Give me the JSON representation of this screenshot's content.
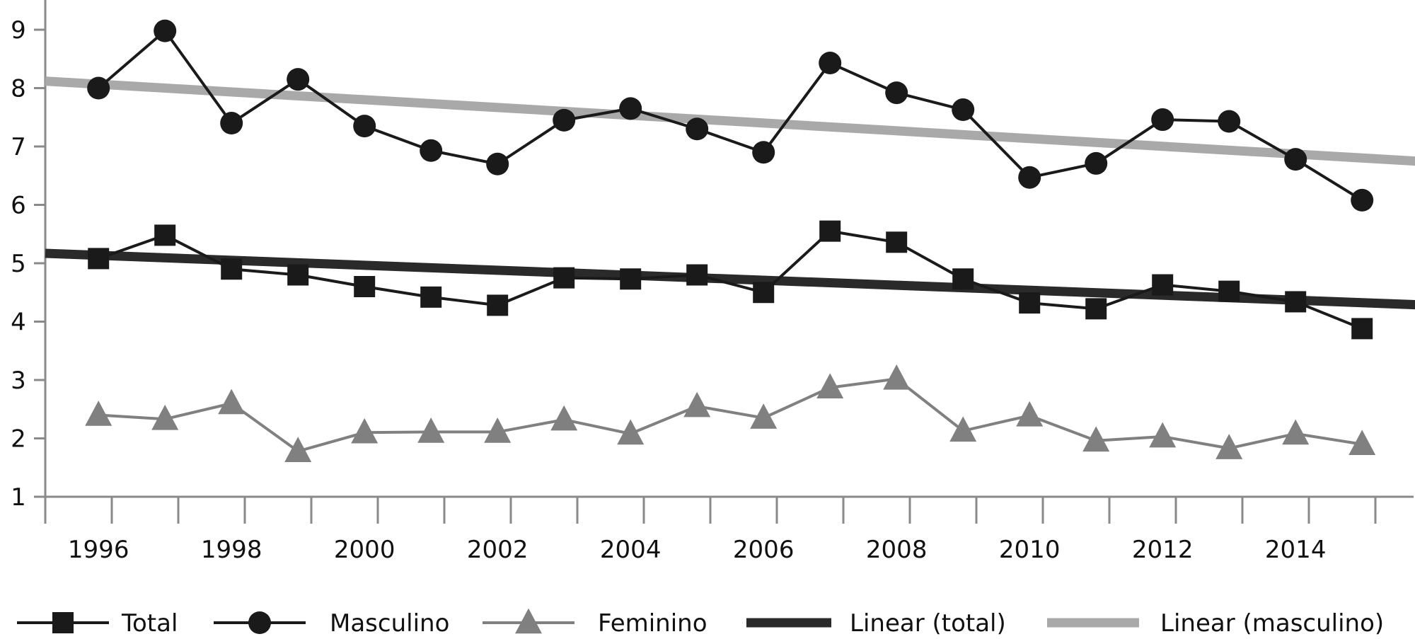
{
  "chart_data": {
    "type": "line",
    "title": "",
    "xlabel": "",
    "ylabel": "",
    "ylim": [
      1,
      9
    ],
    "xlim": [
      1995.2,
      2015.8
    ],
    "yticks": [
      "1",
      "2",
      "3",
      "4",
      "5",
      "6",
      "7",
      "8",
      "9"
    ],
    "xticklabels": [
      "1996",
      "1998",
      "2000",
      "2002",
      "2004",
      "2006",
      "2008",
      "2010",
      "2012",
      "2014"
    ],
    "x": [
      1996,
      1997,
      1998,
      1999,
      2000,
      2001,
      2002,
      2003,
      2004,
      2005,
      2006,
      2007,
      2008,
      2009,
      2010,
      2011,
      2012,
      2013,
      2014,
      2015
    ],
    "grid": false,
    "legend_position": "bottom",
    "series": [
      {
        "name": "Total",
        "marker": "square",
        "color": "#1a1a1a",
        "values": [
          5.08,
          5.48,
          4.9,
          4.8,
          4.6,
          4.42,
          4.28,
          4.75,
          4.73,
          4.8,
          4.5,
          5.55,
          5.36,
          4.73,
          4.32,
          4.22,
          4.63,
          4.52,
          4.34,
          3.88
        ]
      },
      {
        "name": "Masculino",
        "marker": "circle",
        "color": "#1a1a1a",
        "values": [
          8.0,
          8.98,
          7.4,
          8.15,
          7.35,
          6.93,
          6.7,
          7.45,
          7.65,
          7.3,
          6.9,
          8.43,
          7.92,
          7.63,
          6.47,
          6.71,
          7.46,
          7.43,
          6.78,
          6.08
        ]
      },
      {
        "name": "Feminino",
        "marker": "triangle",
        "color": "#808080",
        "values": [
          2.4,
          2.33,
          2.6,
          1.78,
          2.1,
          2.11,
          2.11,
          2.32,
          2.08,
          2.55,
          2.35,
          2.87,
          3.02,
          2.13,
          2.39,
          1.96,
          2.03,
          1.83,
          2.08,
          1.9
        ]
      }
    ],
    "trendlines": [
      {
        "name": "Linear (total)",
        "color": "#2a2a2a",
        "start": [
          1995.2,
          5.17
        ],
        "end": [
          2015.8,
          4.29
        ]
      },
      {
        "name": "Linear (masculino)",
        "color": "#a9a9a9",
        "start": [
          1995.2,
          8.12
        ],
        "end": [
          2015.8,
          6.75
        ]
      }
    ]
  }
}
